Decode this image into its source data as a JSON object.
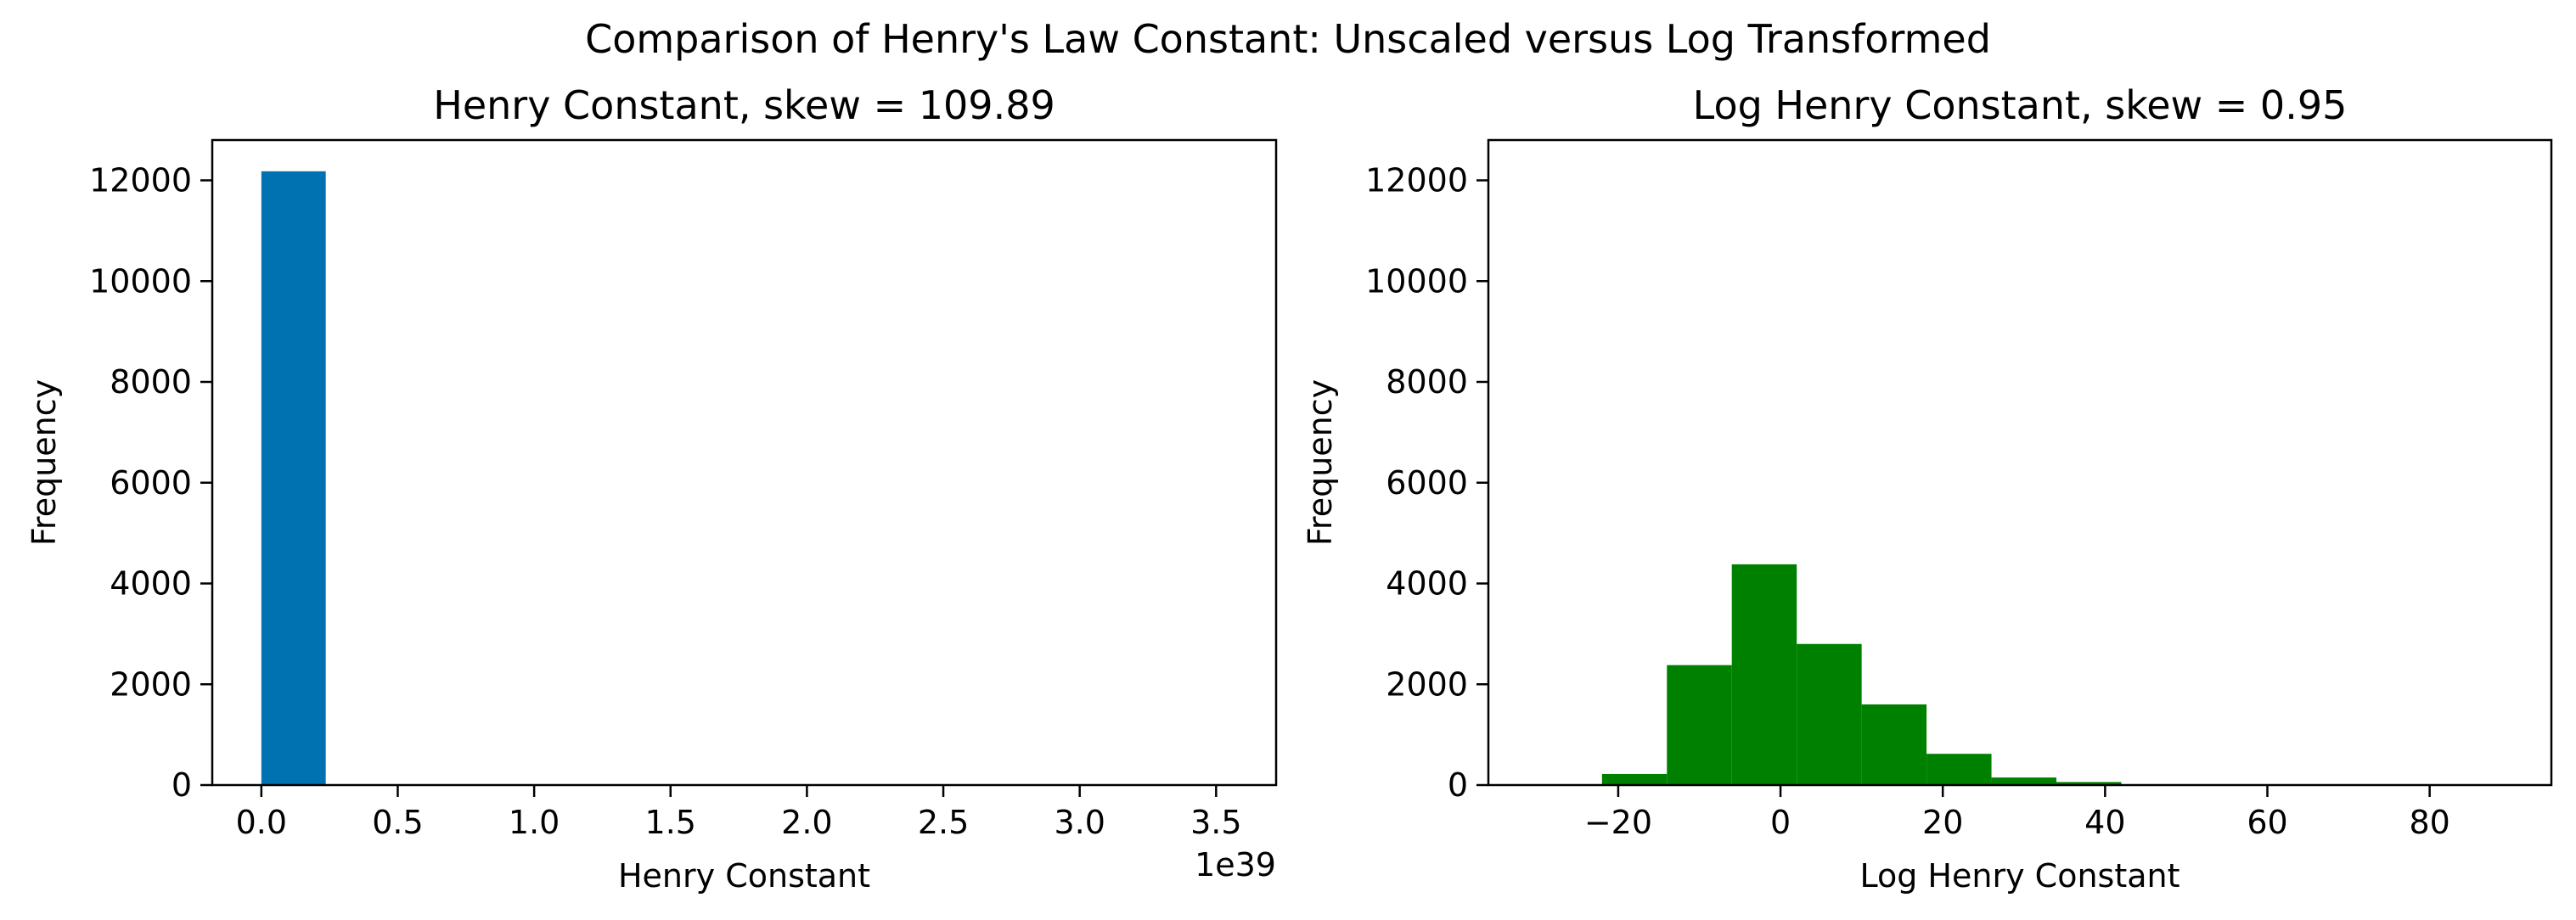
{
  "figure": {
    "suptitle": "Comparison of Henry's Law Constant: Unscaled versus Log Transformed"
  },
  "chart_data": [
    {
      "type": "bar",
      "title": "Henry Constant, skew = 109.89",
      "xlabel": "Henry Constant",
      "ylabel": "Frequency",
      "offset_text": "1e39",
      "xlim": [
        -0.18,
        3.72
      ],
      "ylim": [
        0,
        12800
      ],
      "xticks": [
        0.0,
        0.5,
        1.0,
        1.5,
        2.0,
        2.5,
        3.0,
        3.5
      ],
      "xtick_labels": [
        "0.0",
        "0.5",
        "1.0",
        "1.5",
        "2.0",
        "2.5",
        "3.0",
        "3.5"
      ],
      "yticks": [
        0,
        2000,
        4000,
        6000,
        8000,
        10000,
        12000
      ],
      "ytick_labels": [
        "0",
        "2000",
        "4000",
        "6000",
        "8000",
        "10000",
        "12000"
      ],
      "bin_edges": [
        0.0,
        0.236,
        0.472,
        0.708,
        0.944,
        1.18,
        1.416,
        1.652,
        1.888,
        2.124,
        2.36,
        2.596,
        2.832,
        3.068,
        3.304,
        3.54
      ],
      "values": [
        12180,
        0,
        0,
        0,
        0,
        0,
        0,
        0,
        0,
        0,
        0,
        0,
        0,
        0,
        1
      ],
      "color": "#0072B2",
      "grid": false
    },
    {
      "type": "bar",
      "title": "Log Henry Constant, skew = 0.95",
      "xlabel": "Log Henry Constant",
      "ylabel": "Frequency",
      "xlim": [
        -36,
        95
      ],
      "ylim": [
        0,
        12800
      ],
      "xticks": [
        -20,
        0,
        20,
        40,
        60,
        80
      ],
      "xtick_labels": [
        "−20",
        "0",
        "20",
        "40",
        "60",
        "80"
      ],
      "yticks": [
        0,
        2000,
        4000,
        6000,
        8000,
        10000,
        12000
      ],
      "ytick_labels": [
        "0",
        "2000",
        "4000",
        "6000",
        "8000",
        "10000",
        "12000"
      ],
      "bin_edges": [
        -30,
        -22,
        -14,
        -6,
        2,
        10,
        18,
        26,
        34,
        42,
        50,
        58,
        66,
        74,
        82,
        90
      ],
      "values": [
        5,
        220,
        2380,
        4380,
        2800,
        1600,
        620,
        150,
        60,
        15,
        5,
        3,
        2,
        1,
        1
      ],
      "color": "#008000",
      "grid": false
    }
  ]
}
